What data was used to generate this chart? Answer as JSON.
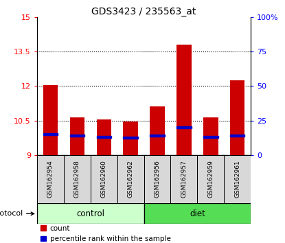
{
  "title": "GDS3423 / 235563_at",
  "samples": [
    "GSM162954",
    "GSM162958",
    "GSM162960",
    "GSM162962",
    "GSM162956",
    "GSM162957",
    "GSM162959",
    "GSM162961"
  ],
  "groups": [
    "control",
    "control",
    "control",
    "control",
    "diet",
    "diet",
    "diet",
    "diet"
  ],
  "bar_base": 9.0,
  "bar_tops": [
    12.05,
    10.65,
    10.55,
    10.45,
    11.1,
    13.8,
    10.65,
    12.25
  ],
  "percentile_positions": [
    9.9,
    9.85,
    9.8,
    9.75,
    9.85,
    10.2,
    9.8,
    9.85
  ],
  "ylim": [
    9.0,
    15.0
  ],
  "left_ticks": [
    9,
    10.5,
    12,
    13.5,
    15
  ],
  "left_labels": [
    "9",
    "10.5",
    "12",
    "13.5",
    "15"
  ],
  "right_ticks": [
    9,
    10.5,
    12,
    13.5,
    15
  ],
  "right_labels": [
    "0",
    "25",
    "50",
    "75",
    "100%"
  ],
  "bar_color": "#cc0000",
  "percentile_color": "#0000cc",
  "control_color": "#ccffcc",
  "diet_color": "#55dd55",
  "label_count": "count",
  "label_pct": "percentile rank within the sample",
  "protocol_label": "protocol",
  "dotted_grid_yticks": [
    10.5,
    12.0,
    13.5
  ]
}
